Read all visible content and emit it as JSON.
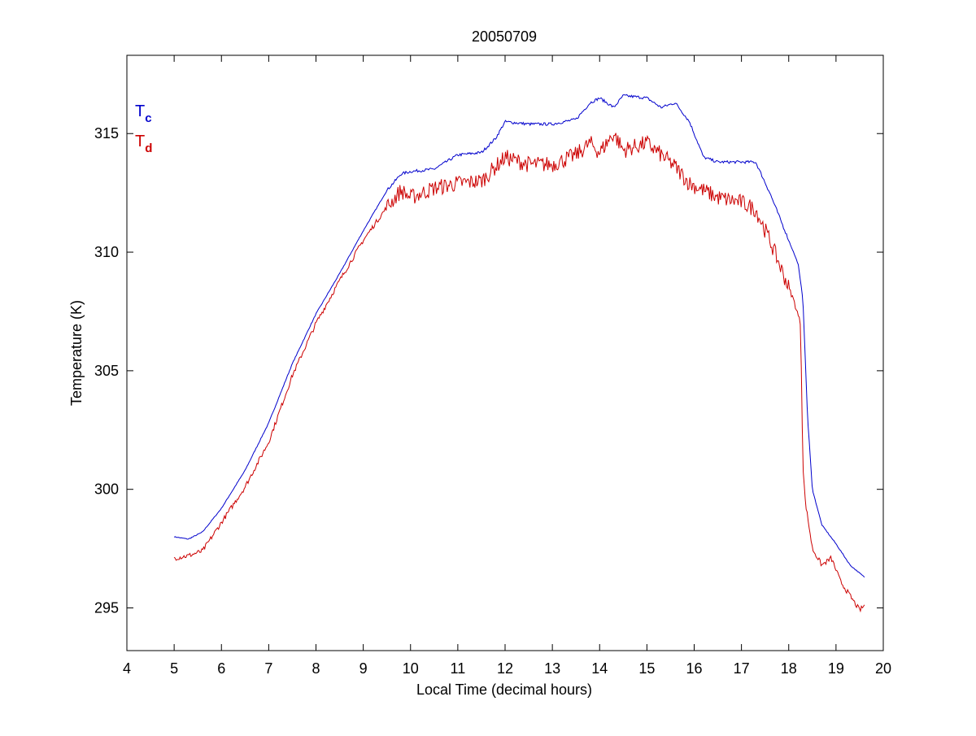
{
  "chart_data": {
    "type": "line",
    "title": "20050709",
    "xlabel": "Local Time (decimal hours)",
    "ylabel": "Temperature (K)",
    "xlim": [
      4,
      20
    ],
    "ylim": [
      293.2,
      318.3
    ],
    "xticks": [
      4,
      5,
      6,
      7,
      8,
      9,
      10,
      11,
      12,
      13,
      14,
      15,
      16,
      17,
      18,
      19,
      20
    ],
    "yticks": [
      295,
      300,
      305,
      310,
      315
    ],
    "grid": false,
    "legend": {
      "position": "top-left",
      "entries": [
        {
          "base": "T",
          "sub": "c",
          "color": "#0000cc"
        },
        {
          "base": "T",
          "sub": "d",
          "color": "#cc0000"
        }
      ]
    },
    "series": [
      {
        "color": "#0000cc",
        "points": [
          [
            5.0,
            298.0
          ],
          [
            5.3,
            297.9
          ],
          [
            5.6,
            298.2
          ],
          [
            6.0,
            299.2
          ],
          [
            6.5,
            300.8
          ],
          [
            7.0,
            302.8
          ],
          [
            7.5,
            305.3
          ],
          [
            8.0,
            307.4
          ],
          [
            8.5,
            309.1
          ],
          [
            9.0,
            310.9
          ],
          [
            9.5,
            312.6
          ],
          [
            9.8,
            313.3
          ],
          [
            10.0,
            313.4
          ],
          [
            10.5,
            313.5
          ],
          [
            11.0,
            314.1
          ],
          [
            11.5,
            314.2
          ],
          [
            11.8,
            314.8
          ],
          [
            12.0,
            315.5
          ],
          [
            12.5,
            315.4
          ],
          [
            13.0,
            315.4
          ],
          [
            13.5,
            315.6
          ],
          [
            13.8,
            316.3
          ],
          [
            14.0,
            316.5
          ],
          [
            14.3,
            316.1
          ],
          [
            14.5,
            316.6
          ],
          [
            15.0,
            316.5
          ],
          [
            15.3,
            316.1
          ],
          [
            15.6,
            316.3
          ],
          [
            15.9,
            315.5
          ],
          [
            16.2,
            314.0
          ],
          [
            16.5,
            313.8
          ],
          [
            17.0,
            313.8
          ],
          [
            17.3,
            313.8
          ],
          [
            17.6,
            312.5
          ],
          [
            17.9,
            311.0
          ],
          [
            18.2,
            309.5
          ],
          [
            18.3,
            308.0
          ],
          [
            18.4,
            303.0
          ],
          [
            18.5,
            300.0
          ],
          [
            18.7,
            298.5
          ],
          [
            19.0,
            297.7
          ],
          [
            19.3,
            296.8
          ],
          [
            19.6,
            296.3
          ]
        ]
      },
      {
        "color": "#cc0000",
        "points": [
          [
            5.0,
            297.1
          ],
          [
            5.3,
            297.2
          ],
          [
            5.6,
            297.4
          ],
          [
            6.0,
            298.6
          ],
          [
            6.5,
            300.1
          ],
          [
            7.0,
            302.0
          ],
          [
            7.5,
            304.8
          ],
          [
            8.0,
            307.0
          ],
          [
            8.5,
            308.8
          ],
          [
            9.0,
            310.5
          ],
          [
            9.5,
            311.9
          ],
          [
            9.8,
            312.6
          ],
          [
            10.0,
            312.3
          ],
          [
            10.5,
            312.7
          ],
          [
            11.0,
            312.9
          ],
          [
            11.5,
            313.0
          ],
          [
            11.8,
            313.6
          ],
          [
            12.0,
            314.0
          ],
          [
            12.5,
            313.7
          ],
          [
            13.0,
            313.7
          ],
          [
            13.5,
            314.1
          ],
          [
            13.8,
            314.6
          ],
          [
            14.0,
            314.2
          ],
          [
            14.3,
            315.0
          ],
          [
            14.5,
            314.3
          ],
          [
            15.0,
            314.6
          ],
          [
            15.3,
            314.1
          ],
          [
            15.6,
            313.6
          ],
          [
            15.9,
            312.9
          ],
          [
            16.2,
            312.6
          ],
          [
            16.5,
            312.3
          ],
          [
            17.0,
            312.1
          ],
          [
            17.3,
            311.8
          ],
          [
            17.6,
            310.5
          ],
          [
            17.9,
            309.0
          ],
          [
            18.1,
            308.0
          ],
          [
            18.25,
            307.0
          ],
          [
            18.3,
            301.0
          ],
          [
            18.35,
            299.5
          ],
          [
            18.5,
            297.5
          ],
          [
            18.7,
            296.8
          ],
          [
            18.9,
            297.1
          ],
          [
            19.1,
            296.1
          ],
          [
            19.3,
            295.5
          ],
          [
            19.5,
            294.9
          ],
          [
            19.6,
            295.1
          ]
        ]
      }
    ]
  }
}
